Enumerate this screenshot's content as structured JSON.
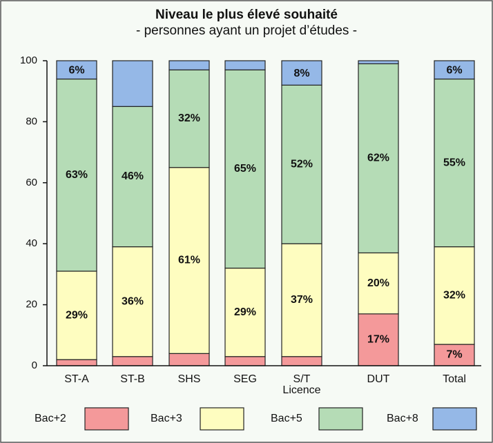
{
  "chart_data": {
    "type": "stacked_bar",
    "title": "Niveau le plus élevé souhaité",
    "subtitle": "- personnes ayant un projet d’études -",
    "categories": [
      "ST-A",
      "ST-B",
      "SHS",
      "SEG",
      "S/T\nLicence",
      "DUT",
      "Total"
    ],
    "ylim": [
      0,
      100
    ],
    "yticks": [
      0,
      20,
      40,
      60,
      80,
      100
    ],
    "legend": "bottom",
    "series": [
      {
        "name": "Bac+2",
        "color": "#f4999a",
        "values": [
          2,
          3,
          4,
          3,
          3,
          17,
          7
        ],
        "value_labels": [
          null,
          null,
          null,
          null,
          null,
          "17%",
          "7%"
        ]
      },
      {
        "name": "Bac+3",
        "color": "#fefdc0",
        "values": [
          29,
          36,
          61,
          29,
          37,
          20,
          32
        ],
        "value_labels": [
          "29%",
          "36%",
          "61%",
          "29%",
          "37%",
          "20%",
          "32%"
        ]
      },
      {
        "name": "Bac+5",
        "color": "#b5dcb6",
        "values": [
          63,
          46,
          32,
          65,
          52,
          62,
          55
        ],
        "value_labels": [
          "63%",
          "46%",
          "32%",
          "65%",
          "52%",
          "62%",
          "55%"
        ]
      },
      {
        "name": "Bac+8",
        "color": "#95b8e7",
        "values": [
          6,
          15,
          3,
          3,
          8,
          1,
          6
        ],
        "value_labels": [
          "6%",
          null,
          null,
          null,
          "8%",
          null,
          "6%"
        ]
      }
    ]
  }
}
